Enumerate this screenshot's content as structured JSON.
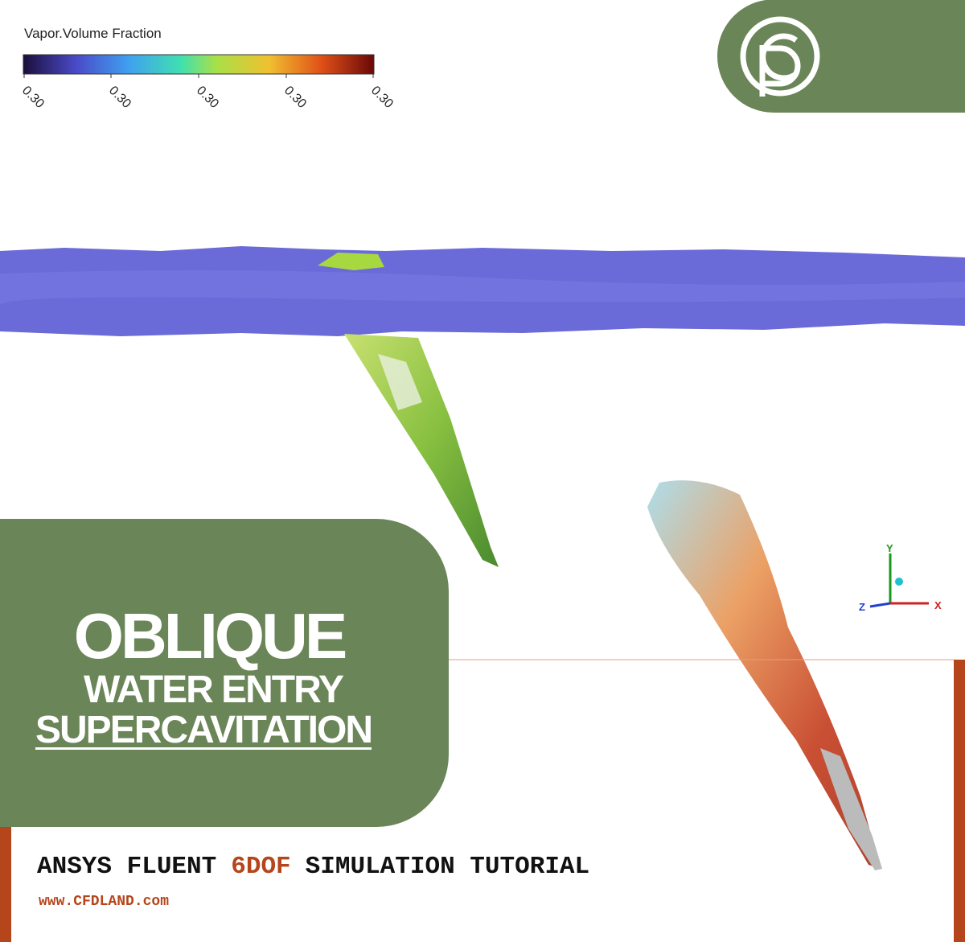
{
  "legend": {
    "title": "Vapor.Volume Fraction",
    "ticks": [
      "0.30",
      "0.30",
      "0.30",
      "0.30",
      "0.30"
    ]
  },
  "title": {
    "line1": "OBLIQUE",
    "line2": "WATER ENTRY",
    "line3": "SUPERCAVITATION"
  },
  "subtitle": {
    "part1": "ANSYS FLUENT",
    "highlight": "6DOF",
    "part2": "SIMULATION TUTORIAL"
  },
  "url": "www.CFDLAND.com",
  "axes": {
    "y": "Y",
    "z": "Z",
    "x": "X"
  }
}
